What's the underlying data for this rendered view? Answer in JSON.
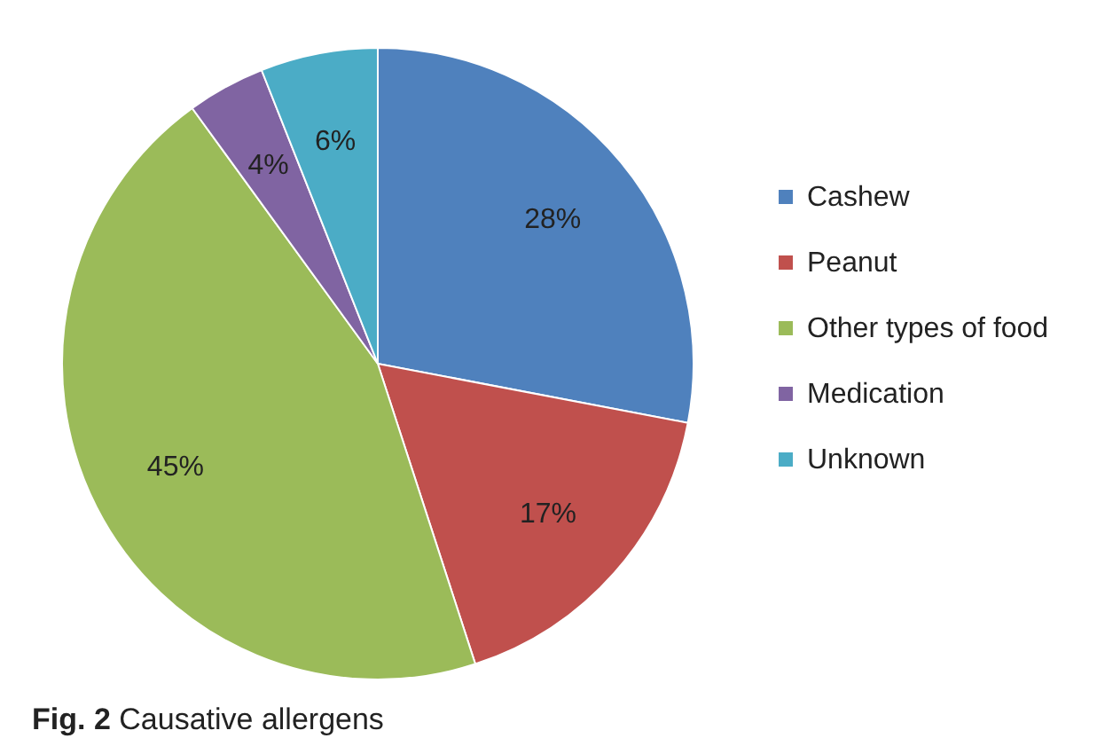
{
  "chart_data": {
    "type": "pie",
    "categories": [
      "Cashew",
      "Peanut",
      "Other types of food",
      "Medication",
      "Unknown"
    ],
    "values": [
      28,
      17,
      45,
      4,
      6
    ],
    "colors": [
      "#4f81bd",
      "#c0504d",
      "#9bbb59",
      "#8064a2",
      "#4bacc6"
    ],
    "value_labels": [
      "28%",
      "17%",
      "45%",
      "4%",
      "6%"
    ],
    "legend": "right",
    "annotations": [
      "Fig. 2  Causative allergens"
    ]
  }
}
